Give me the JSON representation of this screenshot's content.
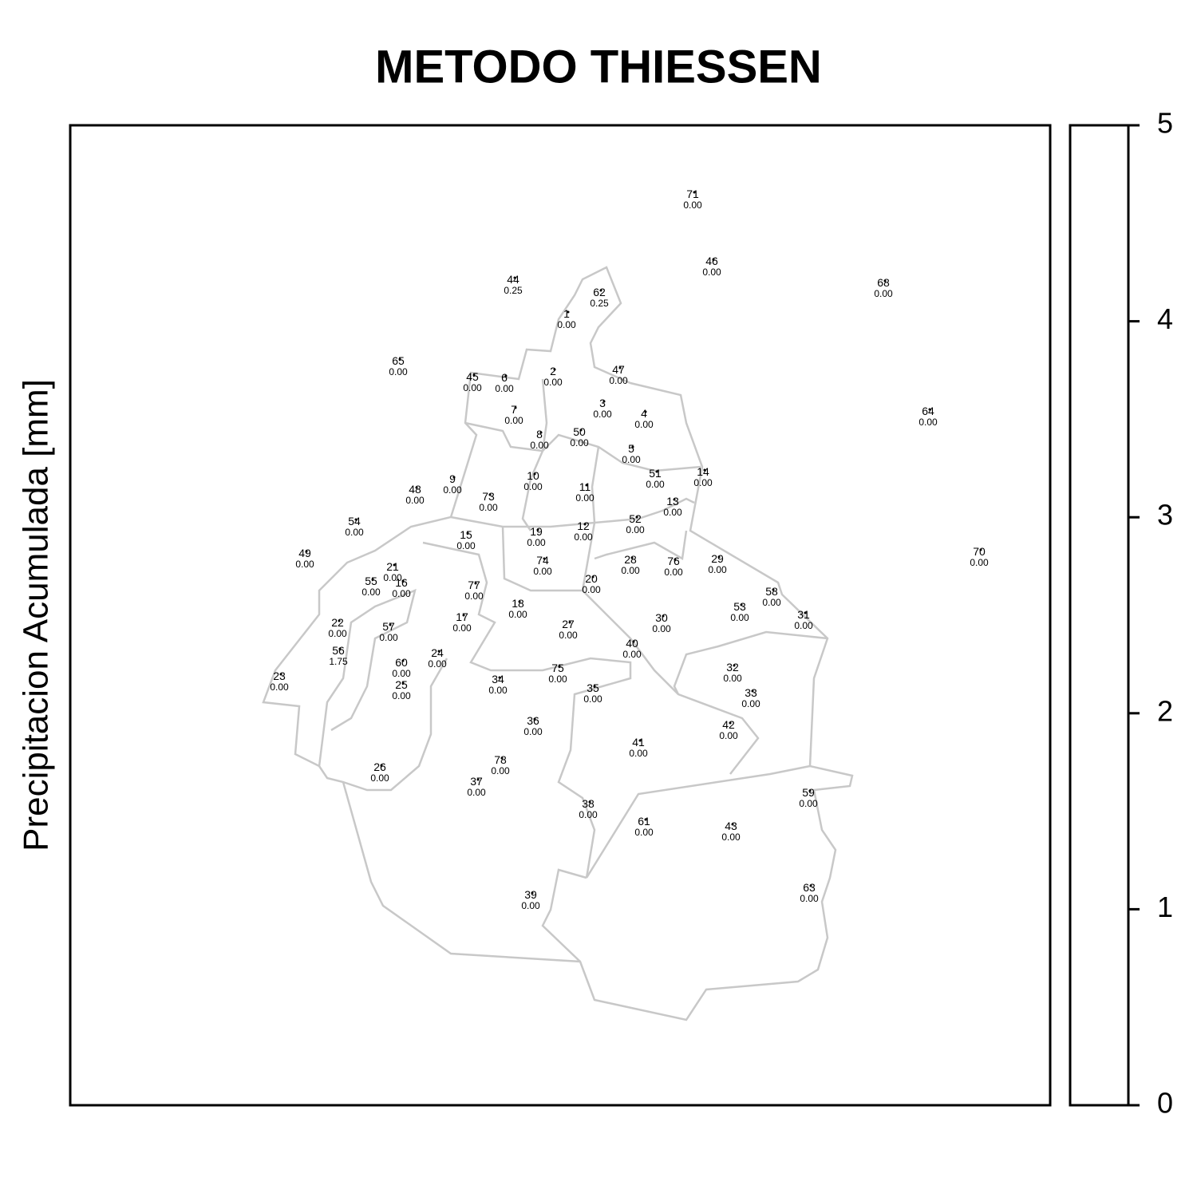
{
  "title": "METODO THIESSEN",
  "y_label": "Precipitacion Acumulada [mm]",
  "colorbar": {
    "lim": [
      0,
      5
    ],
    "ticks": [
      0,
      1,
      2,
      3,
      4,
      5
    ]
  },
  "stations": [
    {
      "id": "71",
      "value": "0.00"
    },
    {
      "id": "46",
      "value": "0.00"
    },
    {
      "id": "68",
      "value": "0.00"
    },
    {
      "id": "44",
      "value": "0.25"
    },
    {
      "id": "62",
      "value": "0.25"
    },
    {
      "id": "1",
      "value": "0.00"
    },
    {
      "id": "65",
      "value": "0.00"
    },
    {
      "id": "45",
      "value": "0.00"
    },
    {
      "id": "6",
      "value": "0.00"
    },
    {
      "id": "2",
      "value": "0.00"
    },
    {
      "id": "47",
      "value": "0.00"
    },
    {
      "id": "3",
      "value": "0.00"
    },
    {
      "id": "4",
      "value": "0.00"
    },
    {
      "id": "7",
      "value": "0.00"
    },
    {
      "id": "64",
      "value": "0.00"
    },
    {
      "id": "8",
      "value": "0.00"
    },
    {
      "id": "50",
      "value": "0.00"
    },
    {
      "id": "5",
      "value": "0.00"
    },
    {
      "id": "9",
      "value": "0.00"
    },
    {
      "id": "48",
      "value": "0.00"
    },
    {
      "id": "73",
      "value": "0.00"
    },
    {
      "id": "10",
      "value": "0.00"
    },
    {
      "id": "11",
      "value": "0.00"
    },
    {
      "id": "51",
      "value": "0.00"
    },
    {
      "id": "14",
      "value": "0.00"
    },
    {
      "id": "13",
      "value": "0.00"
    },
    {
      "id": "54",
      "value": "0.00"
    },
    {
      "id": "15",
      "value": "0.00"
    },
    {
      "id": "19",
      "value": "0.00"
    },
    {
      "id": "12",
      "value": "0.00"
    },
    {
      "id": "52",
      "value": "0.00"
    },
    {
      "id": "49",
      "value": "0.00"
    },
    {
      "id": "70",
      "value": "0.00"
    },
    {
      "id": "21",
      "value": "0.00"
    },
    {
      "id": "55",
      "value": "0.00"
    },
    {
      "id": "16",
      "value": "0.00"
    },
    {
      "id": "74",
      "value": "0.00"
    },
    {
      "id": "28",
      "value": "0.00"
    },
    {
      "id": "76",
      "value": "0.00"
    },
    {
      "id": "29",
      "value": "0.00"
    },
    {
      "id": "20",
      "value": "0.00"
    },
    {
      "id": "77",
      "value": "0.00"
    },
    {
      "id": "58",
      "value": "0.00"
    },
    {
      "id": "18",
      "value": "0.00"
    },
    {
      "id": "53",
      "value": "0.00"
    },
    {
      "id": "17",
      "value": "0.00"
    },
    {
      "id": "22",
      "value": "0.00"
    },
    {
      "id": "57",
      "value": "0.00"
    },
    {
      "id": "27",
      "value": "0.00"
    },
    {
      "id": "30",
      "value": "0.00"
    },
    {
      "id": "31",
      "value": "0.00"
    },
    {
      "id": "40",
      "value": "0.00"
    },
    {
      "id": "56",
      "value": "1.75"
    },
    {
      "id": "24",
      "value": "0.00"
    },
    {
      "id": "60",
      "value": "0.00"
    },
    {
      "id": "32",
      "value": "0.00"
    },
    {
      "id": "75",
      "value": "0.00"
    },
    {
      "id": "23",
      "value": "0.00"
    },
    {
      "id": "34",
      "value": "0.00"
    },
    {
      "id": "25",
      "value": "0.00"
    },
    {
      "id": "35",
      "value": "0.00"
    },
    {
      "id": "33",
      "value": "0.00"
    },
    {
      "id": "36",
      "value": "0.00"
    },
    {
      "id": "42",
      "value": "0.00"
    },
    {
      "id": "41",
      "value": "0.00"
    },
    {
      "id": "78",
      "value": "0.00"
    },
    {
      "id": "26",
      "value": "0.00"
    },
    {
      "id": "37",
      "value": "0.00"
    },
    {
      "id": "59",
      "value": "0.00"
    },
    {
      "id": "38",
      "value": "0.00"
    },
    {
      "id": "61",
      "value": "0.00"
    },
    {
      "id": "43",
      "value": "0.00"
    },
    {
      "id": "63",
      "value": "0.00"
    },
    {
      "id": "39",
      "value": "0.00"
    }
  ]
}
